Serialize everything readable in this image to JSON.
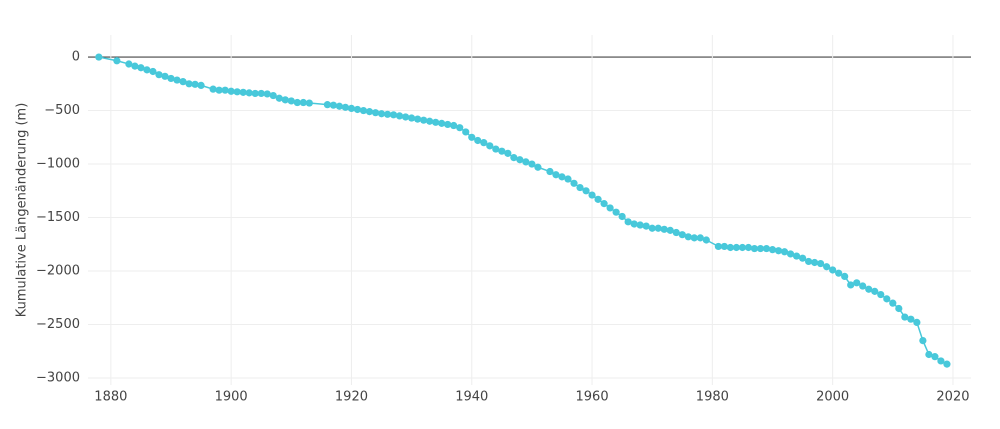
{
  "chart_data": {
    "type": "line",
    "y_label": "Kumulative Längenänderung (m)",
    "color": "#48c8da",
    "grid": true,
    "zeroline": true,
    "xlim": [
      1876.2,
      2023
    ],
    "xticks": [
      1880,
      1900,
      1920,
      1940,
      1960,
      1980,
      2000,
      2020
    ],
    "ylim": [
      -3065,
      206
    ],
    "yticks": [
      {
        "value": -3000,
        "label": "−3000"
      },
      {
        "value": -2500,
        "label": "−2500"
      },
      {
        "value": -2000,
        "label": "−2000"
      },
      {
        "value": -1500,
        "label": "−1500"
      },
      {
        "value": -1000,
        "label": "−1000"
      },
      {
        "value": -500,
        "label": "−500"
      },
      0
    ],
    "x": [
      1878,
      1881,
      1883,
      1884,
      1885,
      1886,
      1887,
      1888,
      1889,
      1890,
      1891,
      1892,
      1893,
      1894,
      1895,
      1897,
      1898,
      1899,
      1900,
      1901,
      1902,
      1903,
      1904,
      1905,
      1906,
      1907,
      1908,
      1909,
      1910,
      1911,
      1912,
      1913,
      1916,
      1917,
      1918,
      1919,
      1920,
      1921,
      1922,
      1923,
      1924,
      1925,
      1926,
      1927,
      1928,
      1929,
      1930,
      1931,
      1932,
      1933,
      1934,
      1935,
      1936,
      1937,
      1938,
      1939,
      1940,
      1941,
      1942,
      1943,
      1944,
      1945,
      1946,
      1947,
      1948,
      1949,
      1950,
      1951,
      1953,
      1954,
      1955,
      1956,
      1957,
      1958,
      1959,
      1960,
      1961,
      1962,
      1963,
      1964,
      1965,
      1966,
      1967,
      1968,
      1969,
      1970,
      1971,
      1972,
      1973,
      1974,
      1975,
      1976,
      1977,
      1978,
      1979,
      1981,
      1982,
      1983,
      1984,
      1985,
      1986,
      1987,
      1988,
      1989,
      1990,
      1991,
      1992,
      1993,
      1994,
      1995,
      1996,
      1997,
      1998,
      1999,
      2000,
      2001,
      2002,
      2003,
      2004,
      2005,
      2006,
      2007,
      2008,
      2009,
      2010,
      2011,
      2012,
      2013,
      2014,
      2015,
      2016,
      2017,
      2018,
      2019
    ],
    "values": [
      0,
      -35,
      -65,
      -85,
      -100,
      -120,
      -135,
      -165,
      -180,
      -200,
      -215,
      -230,
      -250,
      -255,
      -265,
      -300,
      -310,
      -310,
      -320,
      -325,
      -330,
      -335,
      -340,
      -340,
      -345,
      -360,
      -385,
      -400,
      -410,
      -425,
      -425,
      -430,
      -445,
      -450,
      -460,
      -470,
      -480,
      -490,
      -500,
      -510,
      -520,
      -530,
      -535,
      -540,
      -550,
      -560,
      -570,
      -580,
      -590,
      -600,
      -610,
      -620,
      -630,
      -640,
      -660,
      -700,
      -750,
      -780,
      -800,
      -830,
      -860,
      -880,
      -900,
      -940,
      -960,
      -980,
      -1000,
      -1030,
      -1070,
      -1100,
      -1120,
      -1140,
      -1180,
      -1220,
      -1250,
      -1290,
      -1330,
      -1370,
      -1410,
      -1450,
      -1490,
      -1540,
      -1560,
      -1570,
      -1580,
      -1600,
      -1600,
      -1610,
      -1620,
      -1640,
      -1660,
      -1680,
      -1690,
      -1690,
      -1710,
      -1770,
      -1770,
      -1780,
      -1780,
      -1780,
      -1780,
      -1790,
      -1790,
      -1790,
      -1800,
      -1810,
      -1820,
      -1840,
      -1860,
      -1880,
      -1910,
      -1920,
      -1930,
      -1960,
      -1990,
      -2020,
      -2050,
      -2130,
      -2110,
      -2140,
      -2170,
      -2190,
      -2220,
      -2260,
      -2300,
      -2350,
      -2430,
      -2450,
      -2480,
      -2650,
      -2780,
      -2800,
      -2840,
      -2870
    ]
  }
}
